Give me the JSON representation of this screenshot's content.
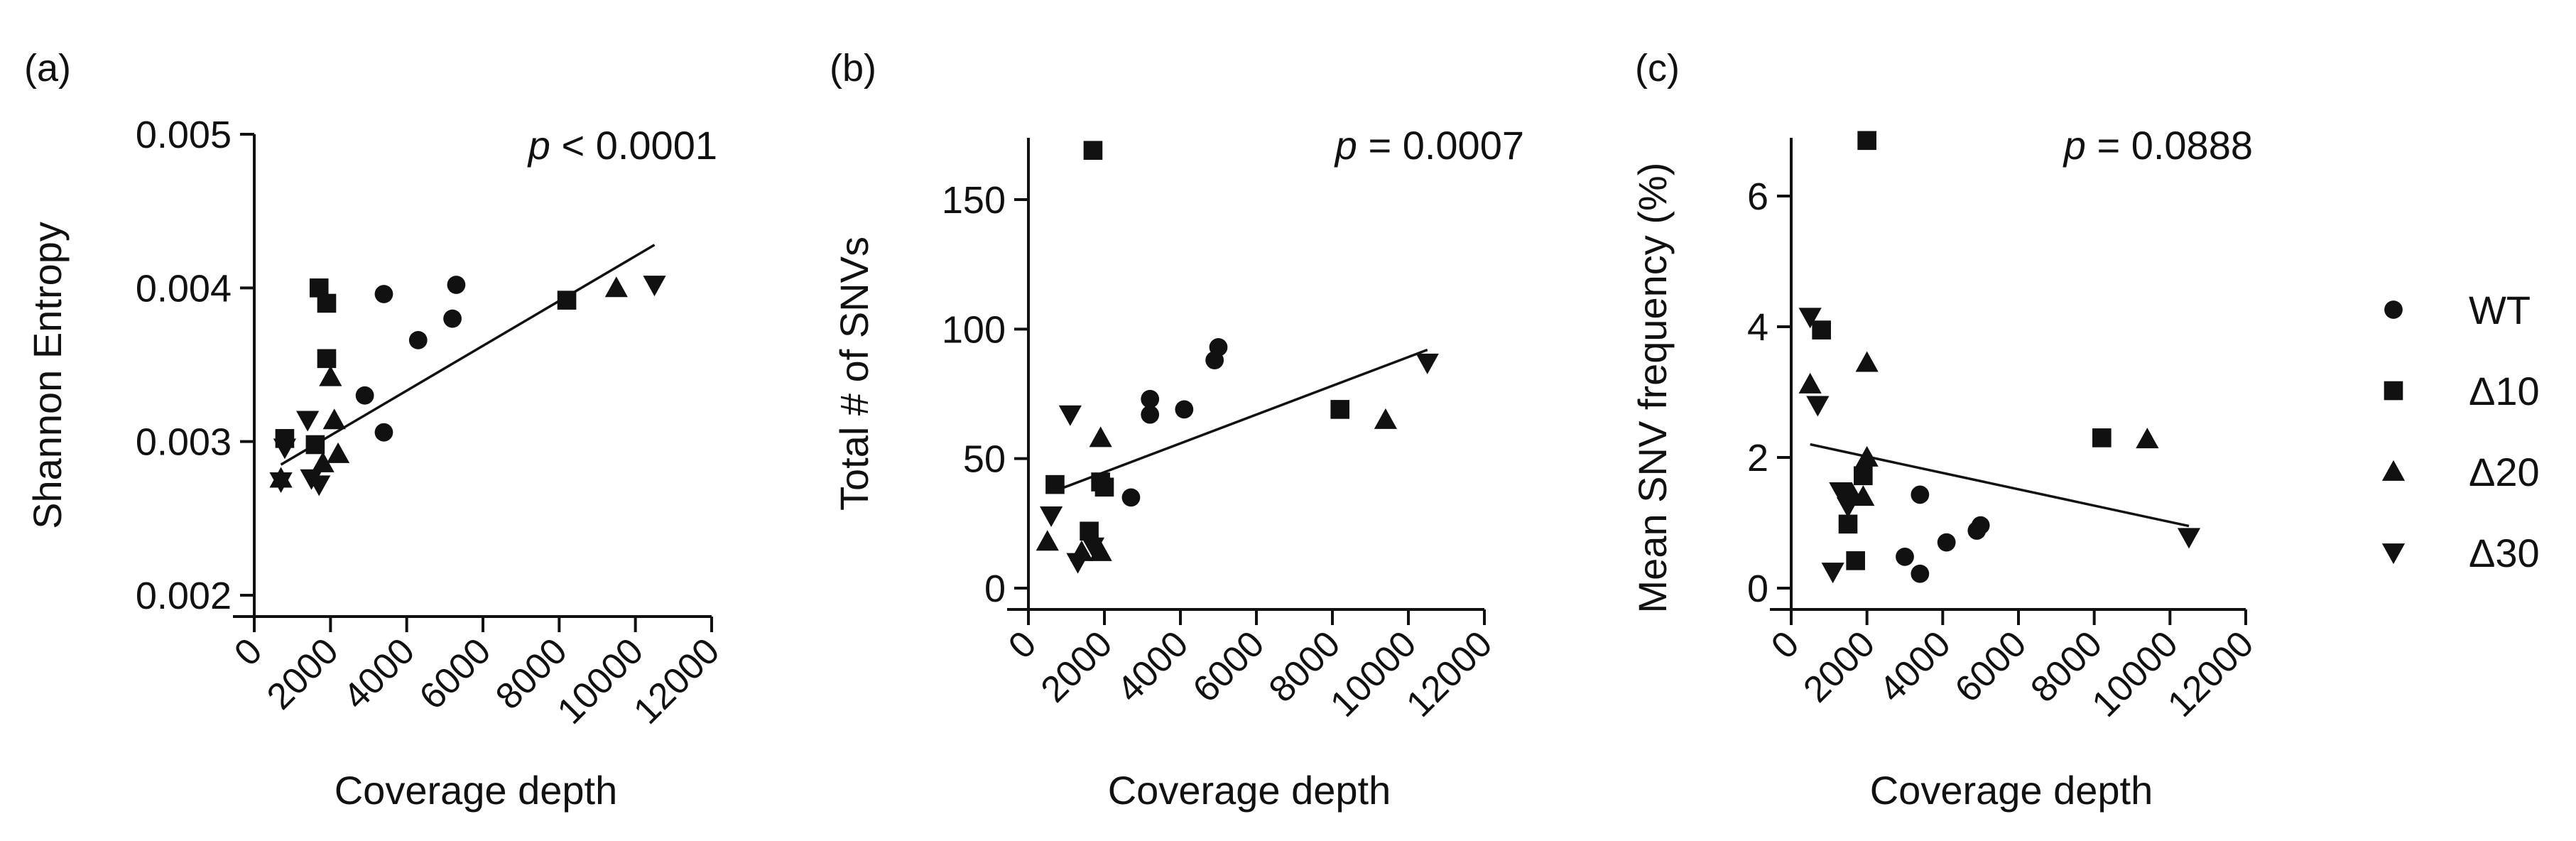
{
  "figure": {
    "colors": {
      "ink": "#111111",
      "background": "#ffffff"
    }
  },
  "legend": {
    "placement": "right",
    "entries": [
      {
        "label": "WT",
        "marker": "circle"
      },
      {
        "label": "Δ10",
        "marker": "square"
      },
      {
        "label": "Δ20",
        "marker": "triangle-up"
      },
      {
        "label": "Δ30",
        "marker": "triangle-down"
      }
    ]
  },
  "chart_data": [
    {
      "panel_label": "(a)",
      "type": "scatter",
      "xlabel": "Coverage depth",
      "ylabel": "Shannon Entropy",
      "annotation": {
        "p": "p",
        "rest": " < 0.0001"
      },
      "xlim": [
        0,
        12000
      ],
      "ylim": [
        0.002,
        0.005
      ],
      "xticks": [
        0,
        2000,
        4000,
        6000,
        8000,
        10000,
        12000
      ],
      "xtick_labels": [
        "0",
        "2000",
        "4000",
        "6000",
        "8000",
        "10000",
        "12000"
      ],
      "yticks": [
        0.002,
        0.003,
        0.004,
        0.005
      ],
      "ytick_labels": [
        "0.002",
        "0.003",
        "0.004",
        "0.005"
      ],
      "series": [
        {
          "name": "WT",
          "marker": "circle",
          "points": [
            [
              2900,
              0.0033
            ],
            [
              3400,
              0.00396
            ],
            [
              4300,
              0.00366
            ],
            [
              5200,
              0.0038
            ],
            [
              5300,
              0.00402
            ],
            [
              3400,
              0.00306
            ]
          ]
        },
        {
          "name": "Δ10",
          "marker": "square",
          "points": [
            [
              1700,
              0.004
            ],
            [
              1900,
              0.0039
            ],
            [
              1900,
              0.00354
            ],
            [
              1600,
              0.00298
            ],
            [
              800,
              0.00302
            ],
            [
              8200,
              0.00392
            ]
          ]
        },
        {
          "name": "Δ20",
          "marker": "triangle-up",
          "points": [
            [
              2000,
              0.00342
            ],
            [
              2100,
              0.00314
            ],
            [
              2200,
              0.00292
            ],
            [
              1800,
              0.00286
            ],
            [
              700,
              0.00276
            ],
            [
              9500,
              0.004
            ]
          ]
        },
        {
          "name": "Δ30",
          "marker": "triangle-down",
          "points": [
            [
              1400,
              0.00314
            ],
            [
              800,
              0.00296
            ],
            [
              700,
              0.00274
            ],
            [
              1500,
              0.00276
            ],
            [
              1700,
              0.00272
            ],
            [
              10500,
              0.00402
            ]
          ]
        }
      ],
      "fit": {
        "x": [
          700,
          10500
        ],
        "y": [
          0.00285,
          0.00428
        ]
      }
    },
    {
      "panel_label": "(b)",
      "type": "scatter",
      "xlabel": "Coverage depth",
      "ylabel": "Total # of SNVs",
      "annotation": {
        "p": "p",
        "rest": " = 0.0007"
      },
      "xlim": [
        0,
        12000
      ],
      "ylim": [
        0,
        175
      ],
      "xticks": [
        0,
        2000,
        4000,
        6000,
        8000,
        10000,
        12000
      ],
      "xtick_labels": [
        "0",
        "2000",
        "4000",
        "6000",
        "8000",
        "10000",
        "12000"
      ],
      "yticks": [
        0,
        50,
        100,
        150
      ],
      "ytick_labels": [
        "0",
        "50",
        "100",
        "150"
      ],
      "series": [
        {
          "name": "WT",
          "marker": "circle",
          "points": [
            [
              2700,
              35
            ],
            [
              3200,
              73
            ],
            [
              3200,
              67
            ],
            [
              4100,
              69
            ],
            [
              4900,
              88
            ],
            [
              5000,
              93
            ]
          ]
        },
        {
          "name": "Δ10",
          "marker": "square",
          "points": [
            [
              1700,
              169
            ],
            [
              700,
              40
            ],
            [
              1900,
              41
            ],
            [
              2000,
              39
            ],
            [
              1600,
              22
            ],
            [
              8200,
              69
            ]
          ]
        },
        {
          "name": "Δ20",
          "marker": "triangle-up",
          "points": [
            [
              1900,
              58
            ],
            [
              500,
              18
            ],
            [
              1900,
              14
            ],
            [
              1400,
              14
            ],
            [
              9400,
              65
            ]
          ]
        },
        {
          "name": "Δ30",
          "marker": "triangle-down",
          "points": [
            [
              1100,
              67
            ],
            [
              600,
              28
            ],
            [
              1300,
              10
            ],
            [
              1700,
              16
            ],
            [
              10500,
              87
            ]
          ]
        }
      ],
      "fit": {
        "x": [
          600,
          10500
        ],
        "y": [
          37,
          92
        ]
      }
    },
    {
      "panel_label": "(c)",
      "type": "scatter",
      "xlabel": "Coverage depth",
      "ylabel": "Mean SNV frequency (%)",
      "annotation": {
        "p": "p",
        "rest": " = 0.0888"
      },
      "xlim": [
        0,
        12000
      ],
      "ylim": [
        0,
        7
      ],
      "xticks": [
        0,
        2000,
        4000,
        6000,
        8000,
        10000,
        12000
      ],
      "xtick_labels": [
        "0",
        "2000",
        "4000",
        "6000",
        "8000",
        "10000",
        "12000"
      ],
      "yticks": [
        0,
        2,
        4,
        6
      ],
      "ytick_labels": [
        "0",
        "2",
        "4",
        "6"
      ],
      "series": [
        {
          "name": "WT",
          "marker": "circle",
          "points": [
            [
              3400,
              1.43
            ],
            [
              3400,
              0.22
            ],
            [
              3000,
              0.48
            ],
            [
              4100,
              0.7
            ],
            [
              4900,
              0.88
            ],
            [
              5000,
              0.96
            ]
          ]
        },
        {
          "name": "Δ10",
          "marker": "square",
          "points": [
            [
              2000,
              6.85
            ],
            [
              800,
              3.95
            ],
            [
              1900,
              1.72
            ],
            [
              1500,
              0.98
            ],
            [
              1700,
              0.42
            ],
            [
              8200,
              2.3
            ]
          ]
        },
        {
          "name": "Δ20",
          "marker": "triangle-up",
          "points": [
            [
              500,
              3.12
            ],
            [
              2000,
              3.45
            ],
            [
              2000,
              2.0
            ],
            [
              1900,
              1.4
            ],
            [
              1600,
              1.45
            ],
            [
              9400,
              2.28
            ]
          ]
        },
        {
          "name": "Δ30",
          "marker": "triangle-down",
          "points": [
            [
              500,
              4.15
            ],
            [
              700,
              2.8
            ],
            [
              1300,
              1.48
            ],
            [
              1500,
              1.25
            ],
            [
              1100,
              0.25
            ],
            [
              10500,
              0.78
            ]
          ]
        }
      ],
      "fit": {
        "x": [
          500,
          10500
        ],
        "y": [
          2.2,
          0.95
        ]
      }
    }
  ]
}
